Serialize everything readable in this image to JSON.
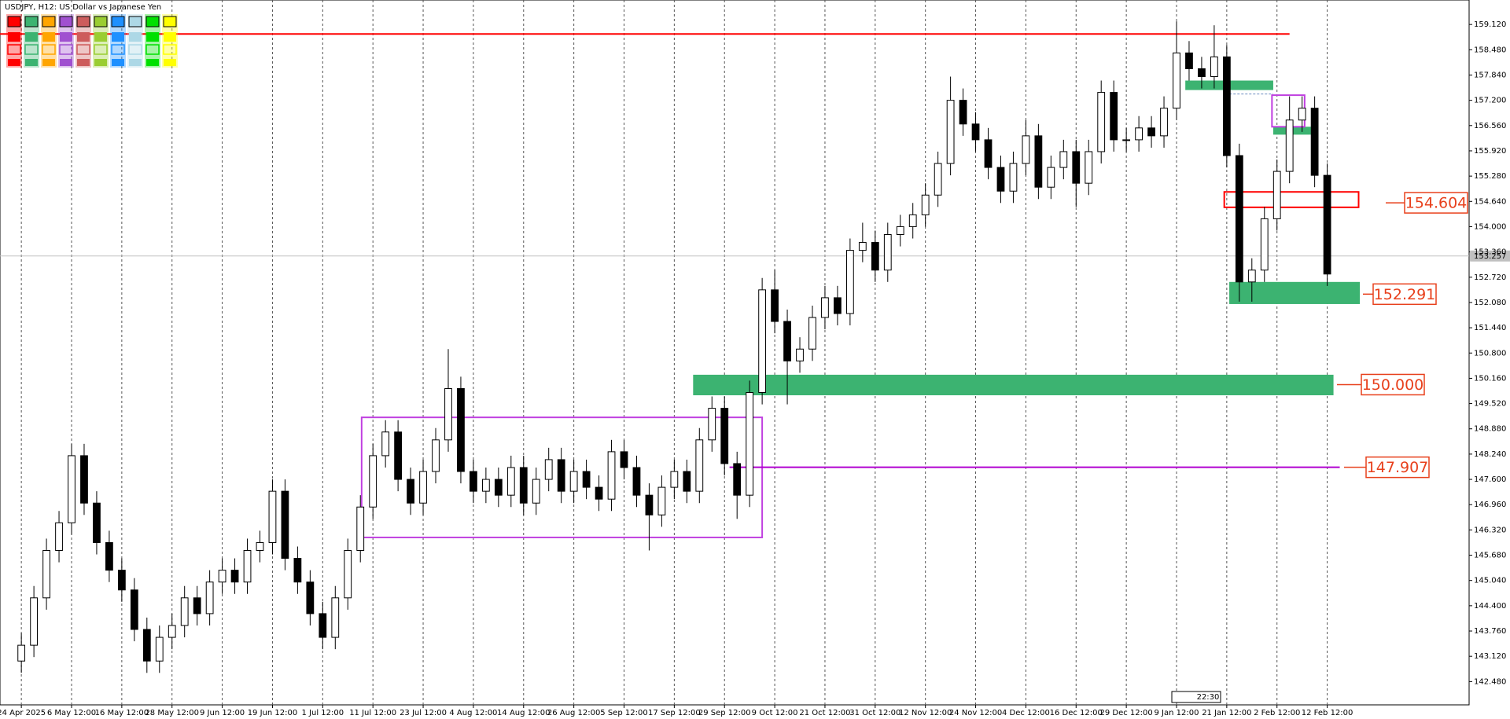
{
  "chart_data": {
    "type": "candlestick",
    "title": "USDJPY, H12:  US Dollar vs Japanese Yen",
    "xlim": [
      -1.7,
      115.3
    ],
    "ylim": [
      141.89,
      159.74
    ],
    "grid": "x",
    "xticks": [
      {
        "value": 0,
        "label": "24 Apr 2025"
      },
      {
        "value": 4,
        "label": "6 May 12:00"
      },
      {
        "value": 8,
        "label": "16 May 12:00"
      },
      {
        "value": 12,
        "label": "28 May 12:00"
      },
      {
        "value": 16,
        "label": "9 Jun 12:00"
      },
      {
        "value": 20,
        "label": "19 Jun 12:00"
      },
      {
        "value": 24,
        "label": "1 Jul 12:00"
      },
      {
        "value": 28,
        "label": "11 Jul 12:00"
      },
      {
        "value": 32,
        "label": "23 Jul 12:00"
      },
      {
        "value": 36,
        "label": "4 Aug 12:00"
      },
      {
        "value": 40,
        "label": "14 Aug 12:00"
      },
      {
        "value": 44,
        "label": "26 Aug 12:00"
      },
      {
        "value": 48,
        "label": "5 Sep 12:00"
      },
      {
        "value": 52,
        "label": "17 Sep 12:00"
      },
      {
        "value": 56,
        "label": "29 Sep 12:00"
      },
      {
        "value": 60,
        "label": "9 Oct 12:00"
      },
      {
        "value": 64,
        "label": "21 Oct 12:00"
      },
      {
        "value": 68,
        "label": "31 Oct 12:00"
      },
      {
        "value": 72,
        "label": "12 Nov 12:00"
      },
      {
        "value": 76,
        "label": "24 Nov 12:00"
      },
      {
        "value": 80,
        "label": "4 Dec 12:00"
      },
      {
        "value": 84,
        "label": "16 Dec 12:00"
      },
      {
        "value": 88,
        "label": "29 Dec 12:00"
      },
      {
        "value": 92,
        "label": "9 Jan 12:00"
      },
      {
        "value": 96,
        "label": "21 Jan 12:00"
      },
      {
        "value": 100,
        "label": "2 Feb 12:00"
      },
      {
        "value": 104,
        "label": "12 Feb 12:00"
      }
    ],
    "yticks": [
      {
        "value": 142.48,
        "label": "142.480"
      },
      {
        "value": 143.12,
        "label": "143.120"
      },
      {
        "value": 143.76,
        "label": "143.760"
      },
      {
        "value": 144.4,
        "label": "144.400"
      },
      {
        "value": 145.04,
        "label": "145.040"
      },
      {
        "value": 145.68,
        "label": "145.680"
      },
      {
        "value": 146.32,
        "label": "146.320"
      },
      {
        "value": 146.96,
        "label": "146.960"
      },
      {
        "value": 147.6,
        "label": "147.600"
      },
      {
        "value": 148.24,
        "label": "148.240"
      },
      {
        "value": 148.88,
        "label": "148.880"
      },
      {
        "value": 149.52,
        "label": "149.520"
      },
      {
        "value": 150.16,
        "label": "150.160"
      },
      {
        "value": 150.8,
        "label": "150.800"
      },
      {
        "value": 151.44,
        "label": "151.440"
      },
      {
        "value": 152.08,
        "label": "152.080"
      },
      {
        "value": 152.72,
        "label": "152.720"
      },
      {
        "value": 153.36,
        "label": "153.360"
      },
      {
        "value": 154,
        "label": "154.000"
      },
      {
        "value": 154.64,
        "label": "154.640"
      },
      {
        "value": 155.28,
        "label": "155.280"
      },
      {
        "value": 155.92,
        "label": "155.920"
      },
      {
        "value": 156.56,
        "label": "156.560"
      },
      {
        "value": 157.2,
        "label": "157.200"
      },
      {
        "value": 157.84,
        "label": "157.840"
      },
      {
        "value": 158.48,
        "label": "158.480"
      },
      {
        "value": 159.12,
        "label": "159.120"
      }
    ],
    "candles": {
      "open": [
        143.0,
        143.4,
        144.6,
        145.8,
        146.5,
        148.2,
        147.0,
        146.0,
        145.3,
        144.8,
        143.8,
        143.0,
        143.6,
        143.9,
        144.6,
        144.2,
        145.0,
        145.3,
        145.0,
        145.8,
        146.0,
        147.3,
        145.6,
        145.0,
        144.2,
        143.6,
        144.6,
        145.8,
        146.9,
        148.2,
        148.8,
        147.6,
        147.0,
        147.8,
        148.6,
        149.9,
        147.8,
        147.3,
        147.6,
        147.2,
        147.9,
        147.0,
        147.6,
        148.1,
        147.3,
        147.8,
        147.4,
        147.1,
        148.3,
        147.9,
        147.2,
        146.7,
        147.4,
        147.8,
        147.3,
        148.6,
        149.4,
        148.0,
        147.2,
        149.8,
        152.4,
        151.6,
        150.6,
        150.9,
        151.7,
        152.2,
        151.8,
        153.4,
        153.6,
        152.9,
        153.8,
        154.0,
        154.3,
        154.8,
        155.6,
        157.2,
        156.6,
        156.2,
        155.5,
        154.9,
        155.6,
        156.3,
        155.0,
        155.5,
        155.9,
        155.1,
        155.9,
        157.4,
        156.2,
        156.2,
        156.5,
        156.3,
        157.0,
        158.4,
        158.0,
        157.8,
        158.3,
        155.8,
        152.6,
        152.9,
        154.2,
        155.4,
        156.7,
        157.0,
        155.3
      ],
      "high": [
        143.7,
        144.9,
        146.1,
        146.8,
        148.5,
        148.5,
        147.3,
        146.3,
        145.6,
        145.1,
        144.1,
        143.9,
        144.2,
        144.9,
        144.9,
        145.3,
        145.6,
        145.6,
        146.1,
        146.3,
        147.6,
        147.6,
        145.9,
        145.3,
        144.5,
        144.9,
        146.1,
        147.2,
        148.5,
        149.1,
        149.1,
        147.9,
        148.1,
        148.9,
        150.9,
        150.2,
        148.1,
        147.9,
        147.9,
        148.2,
        148.2,
        147.9,
        148.4,
        148.4,
        148.1,
        148.1,
        147.7,
        148.6,
        148.6,
        148.2,
        147.5,
        147.7,
        148.1,
        148.1,
        148.9,
        149.7,
        149.7,
        148.3,
        150.1,
        152.7,
        152.9,
        151.9,
        151.2,
        152.0,
        152.5,
        152.5,
        153.7,
        154.1,
        153.9,
        154.1,
        154.3,
        154.6,
        155.1,
        155.9,
        157.8,
        157.5,
        156.9,
        156.5,
        155.8,
        155.9,
        156.7,
        156.6,
        155.8,
        156.2,
        156.2,
        156.2,
        157.7,
        157.7,
        156.5,
        156.8,
        156.8,
        157.3,
        159.2,
        158.7,
        158.3,
        159.1,
        158.6,
        156.1,
        153.2,
        154.5,
        155.7,
        157.3,
        157.3,
        157.3,
        155.6
      ],
      "low": [
        142.7,
        143.1,
        144.3,
        145.5,
        146.2,
        146.7,
        145.7,
        145.0,
        144.5,
        143.5,
        142.7,
        142.7,
        143.3,
        143.6,
        143.9,
        143.9,
        144.7,
        144.7,
        144.7,
        145.5,
        145.7,
        145.3,
        144.7,
        143.9,
        143.3,
        143.3,
        144.3,
        145.5,
        146.6,
        147.9,
        147.3,
        146.7,
        146.7,
        147.5,
        148.3,
        147.5,
        147.0,
        147.0,
        146.9,
        146.9,
        146.7,
        146.7,
        147.3,
        147.0,
        147.0,
        147.1,
        146.8,
        146.8,
        147.6,
        146.9,
        145.8,
        146.4,
        147.1,
        147.0,
        147.0,
        148.3,
        147.7,
        146.6,
        146.9,
        149.5,
        151.3,
        149.5,
        150.3,
        150.6,
        151.4,
        151.5,
        151.5,
        153.1,
        152.6,
        152.6,
        153.5,
        153.7,
        154.0,
        154.5,
        155.3,
        156.3,
        155.9,
        155.2,
        154.6,
        154.6,
        155.3,
        154.7,
        154.7,
        155.2,
        154.5,
        154.8,
        155.6,
        155.9,
        155.9,
        155.9,
        156.0,
        156.0,
        156.7,
        157.7,
        157.5,
        157.5,
        155.5,
        152.1,
        152.1,
        152.6,
        153.9,
        155.1,
        156.4,
        155.0,
        152.5
      ],
      "close": [
        143.4,
        144.6,
        145.8,
        146.5,
        148.2,
        147.0,
        146.0,
        145.3,
        144.8,
        143.8,
        143.0,
        143.6,
        143.9,
        144.6,
        144.2,
        145.0,
        145.3,
        145.0,
        145.8,
        146.0,
        147.3,
        145.6,
        145.0,
        144.2,
        143.6,
        144.6,
        145.8,
        146.9,
        148.2,
        148.8,
        147.6,
        147.0,
        147.8,
        148.6,
        149.9,
        147.8,
        147.3,
        147.6,
        147.2,
        147.9,
        147.0,
        147.6,
        148.1,
        147.3,
        147.8,
        147.4,
        147.1,
        148.3,
        147.9,
        147.2,
        146.7,
        147.4,
        147.8,
        147.3,
        148.6,
        149.4,
        148.0,
        147.2,
        149.8,
        152.4,
        151.6,
        150.6,
        150.9,
        151.7,
        152.2,
        151.8,
        153.4,
        153.6,
        152.9,
        153.8,
        154.0,
        154.3,
        154.8,
        155.6,
        157.2,
        156.6,
        156.2,
        155.5,
        154.9,
        155.6,
        156.3,
        155.0,
        155.5,
        155.9,
        155.1,
        155.9,
        157.4,
        156.2,
        156.2,
        156.5,
        156.3,
        157.0,
        158.4,
        158.0,
        157.8,
        158.3,
        155.8,
        152.6,
        152.9,
        154.2,
        155.4,
        156.7,
        157.0,
        155.3,
        152.8
      ]
    },
    "current_price": 153.257,
    "zones": [
      {
        "y": [
          157.46,
          157.7
        ],
        "x": [
          92.7,
          99.7
        ],
        "color": "#3cb371",
        "fill": true
      },
      {
        "y": [
          156.33,
          156.53
        ],
        "x": [
          99.7,
          102.7
        ],
        "color": "#3cb371",
        "fill": true
      },
      {
        "y": [
          152.04,
          152.6
        ],
        "x": [
          96.2,
          106.6
        ],
        "color": "#3cb371",
        "fill": true
      },
      {
        "y": [
          149.73,
          150.25
        ],
        "x": [
          53.5,
          104.5
        ],
        "color": "#3cb371",
        "fill": true
      },
      {
        "y": [
          154.49,
          154.88
        ],
        "x": [
          95.8,
          106.5
        ],
        "color": "#ff0000",
        "fill": false
      },
      {
        "y": [
          146.13,
          149.17
        ],
        "x": [
          27.1,
          59
        ],
        "color": "#c040e0",
        "fill": false
      },
      {
        "y": [
          156.53,
          157.33
        ],
        "x": [
          99.6,
          102.2
        ],
        "color": "#c040e0",
        "fill": false
      }
    ],
    "hlines": [
      {
        "value": 158.88,
        "x": [
          -1.7,
          101
        ],
        "color": "#ff0000",
        "dashed": false
      },
      {
        "value": 147.907,
        "x": [
          56.4,
          105
        ],
        "color": "#b000d0",
        "dashed": false
      },
      {
        "value": 157.36,
        "x": [
          95.9,
          99.7
        ],
        "color": "#6a8cc0",
        "dashed": true
      }
    ],
    "levels": {
      "values": [
        154.604,
        152.291,
        150,
        147.907
      ],
      "value_labels": [
        "154.604",
        "152.291",
        "150.000",
        "147.907"
      ],
      "color": "#e8401c"
    },
    "time_marker": "22:30"
  }
}
